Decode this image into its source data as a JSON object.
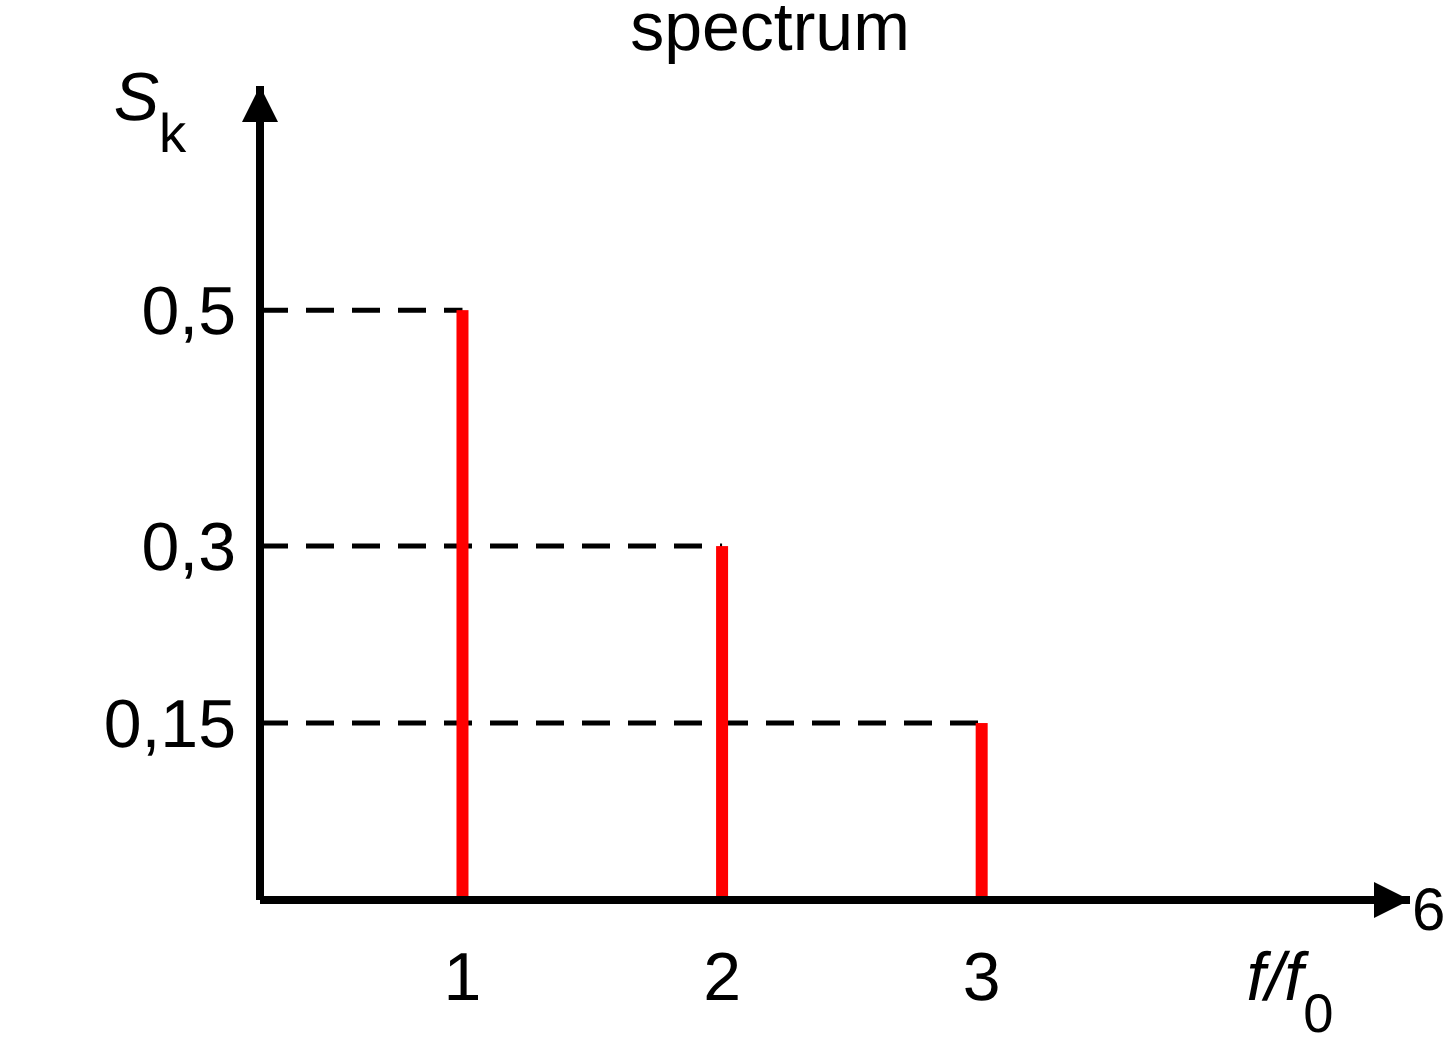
{
  "chart_data": {
    "type": "bar",
    "title": "spectrum",
    "xlabel": "f/f$_{0}$",
    "ylabel": "S$_{k}$",
    "x": [
      1,
      2,
      3
    ],
    "series": [
      {
        "color": "#ff0000",
        "values": [
          0.5,
          0.3,
          0.15
        ]
      }
    ],
    "xlim": [
      0.22,
      4.65
    ],
    "xticks": [
      1,
      2,
      3
    ],
    "ylim": [
      0,
      0.69
    ],
    "yticks": [
      {
        "value": 0.5,
        "label": "0,5"
      },
      {
        "value": 0.3,
        "label": "0,3"
      },
      {
        "value": 0.15,
        "label": "0,15"
      }
    ],
    "ref_lines": [
      {
        "axis": "y",
        "value": 0.5,
        "color": "#000000",
        "line_style": "dashed"
      },
      {
        "axis": "y",
        "value": 0.3,
        "color": "#000000",
        "line_style": "dashed"
      },
      {
        "axis": "y",
        "value": 0.15,
        "color": "#000000",
        "line_style": "dashed"
      }
    ],
    "annotations": [
      "6"
    ]
  }
}
